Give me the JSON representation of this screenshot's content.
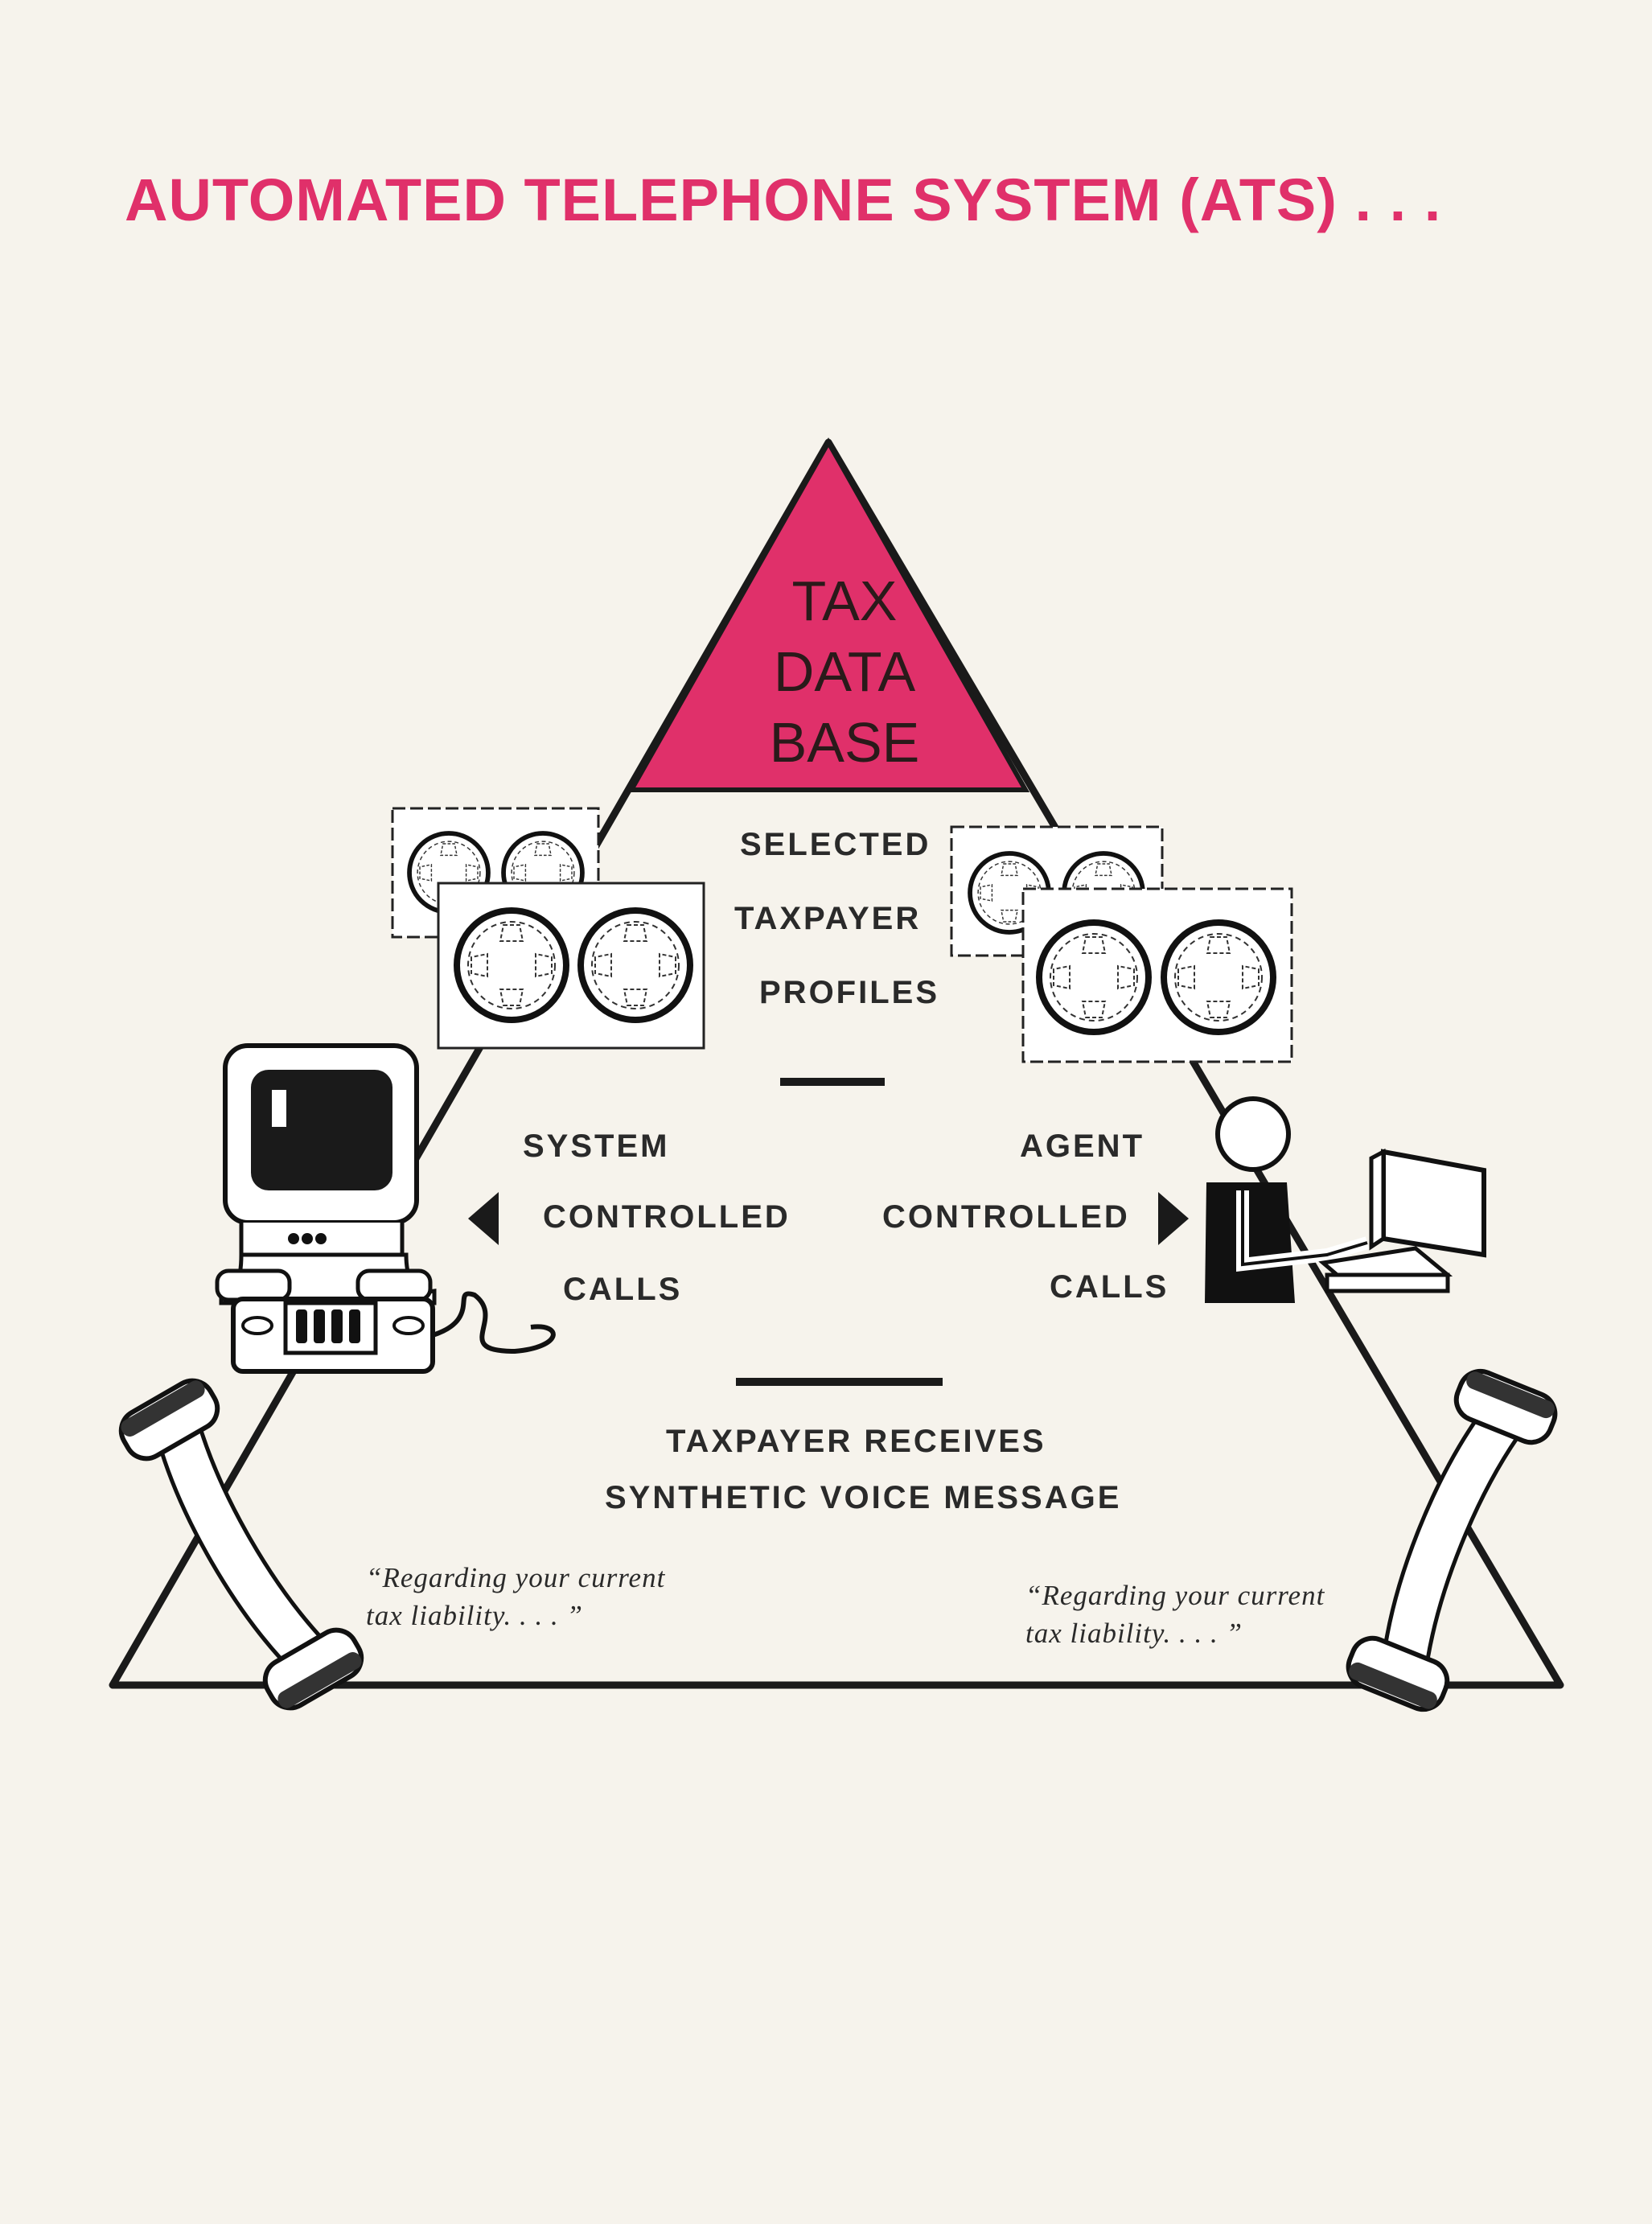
{
  "title": "AUTOMATED TELEPHONE SYSTEM (ATS) . . .",
  "colors": {
    "accent": "#e0306a",
    "ink": "#1a1a1a",
    "paper": "#f6f3ec"
  },
  "apex": {
    "line1": "TAX",
    "line2": "DATA",
    "line3": "BASE"
  },
  "profiles": {
    "line1": "SELECTED",
    "line2": "TAXPAYER",
    "line3": "PROFILES"
  },
  "system_calls": {
    "line1": "SYSTEM",
    "line2": "CONTROLLED",
    "line3": "CALLS"
  },
  "agent_calls": {
    "line1": "AGENT",
    "line2": "CONTROLLED",
    "line3": "CALLS"
  },
  "receives": {
    "line1": "TAXPAYER RECEIVES",
    "line2": "SYNTHETIC VOICE MESSAGE"
  },
  "quote_left": {
    "line1": "“Regarding your current",
    "line2": "tax liability. . . . ”"
  },
  "quote_right": {
    "line1": "“Regarding your current",
    "line2": "tax liability. . . . ”"
  },
  "icons": [
    "tape-reel-icon",
    "computer-terminal-icon",
    "agent-icon",
    "telephone-handset-icon"
  ]
}
